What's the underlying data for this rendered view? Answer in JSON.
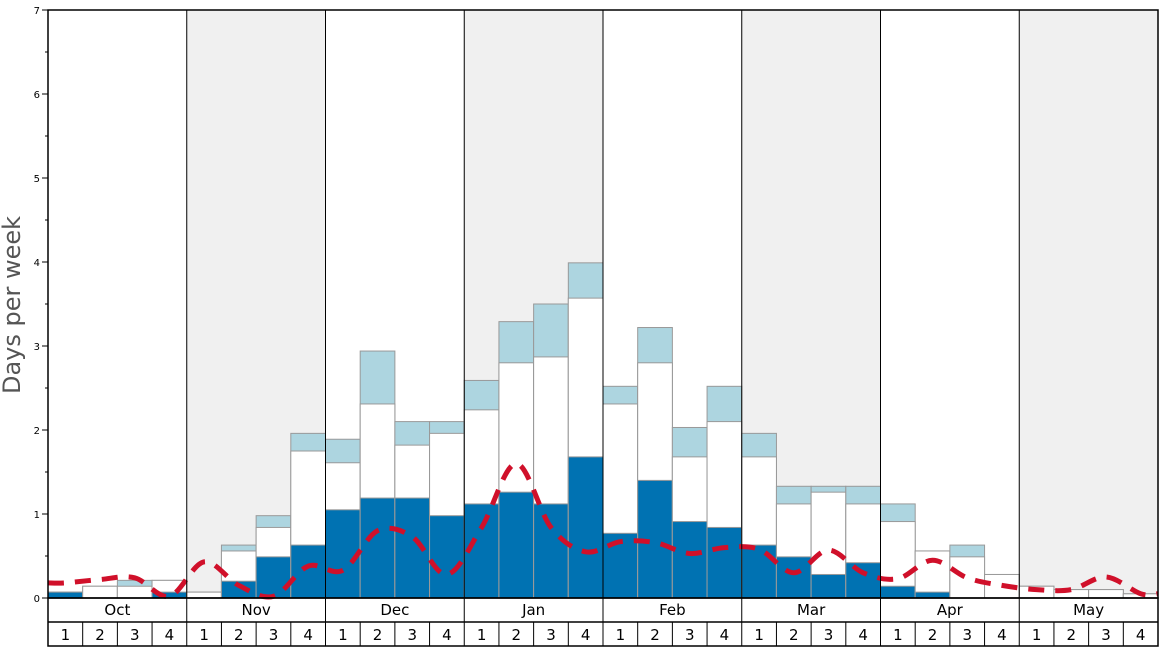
{
  "chart_data": {
    "type": "bar",
    "ylabel": "Days per week",
    "ylim": [
      0,
      7
    ],
    "y_ticks": [
      "0",
      "1",
      "2",
      "3",
      "4",
      "5",
      "6",
      "7"
    ],
    "months": [
      "Oct",
      "Nov",
      "Dec",
      "Jan",
      "Feb",
      "Mar",
      "Apr",
      "May"
    ],
    "weeks": [
      "1",
      "2",
      "3",
      "4"
    ],
    "colors": {
      "dark": "#0072b2",
      "white": "#ffffff",
      "light": "#add5e0",
      "line": "#d0102a",
      "shade": "#f0f0f0",
      "bar_edge": "#999999"
    },
    "series": [
      {
        "values": [
          0.07,
          0,
          0,
          0.07,
          0,
          0.2,
          0.49,
          0.63,
          1.05,
          1.19,
          1.19,
          0.98,
          1.12,
          1.26,
          1.12,
          1.68,
          0.77,
          1.4,
          0.91,
          0.84,
          0.63,
          0.49,
          0.28,
          0.42,
          0.14,
          0.07,
          0,
          0,
          0,
          0,
          0,
          0
        ]
      },
      {
        "values": [
          0.07,
          0.14,
          0.14,
          0.21,
          0.07,
          0.56,
          0.84,
          1.75,
          1.61,
          2.31,
          1.82,
          1.96,
          2.24,
          2.8,
          2.87,
          3.57,
          2.31,
          2.8,
          1.68,
          2.1,
          1.68,
          1.12,
          1.26,
          1.12,
          0.91,
          0.56,
          0.49,
          0.28,
          0.14,
          0.1,
          0.1,
          0.05
        ]
      },
      {
        "values": [
          0.07,
          0.14,
          0.21,
          0.21,
          0.07,
          0.63,
          0.98,
          1.96,
          1.89,
          2.94,
          2.1,
          2.1,
          2.59,
          3.29,
          3.5,
          3.99,
          2.52,
          3.22,
          2.03,
          2.52,
          1.96,
          1.33,
          1.33,
          1.33,
          1.12,
          0.56,
          0.63,
          0.28,
          0.14,
          0.1,
          0.1,
          0.05
        ]
      },
      {
        "values": [
          0.18,
          0.22,
          0.24,
          0.02,
          0.43,
          0.15,
          0.02,
          0.38,
          0.33,
          0.8,
          0.73,
          0.28,
          0.84,
          1.6,
          0.84,
          0.55,
          0.67,
          0.66,
          0.53,
          0.6,
          0.58,
          0.3,
          0.57,
          0.3,
          0.23,
          0.45,
          0.24,
          0.15,
          0.1,
          0.1,
          0.25,
          0.05
        ]
      }
    ]
  }
}
